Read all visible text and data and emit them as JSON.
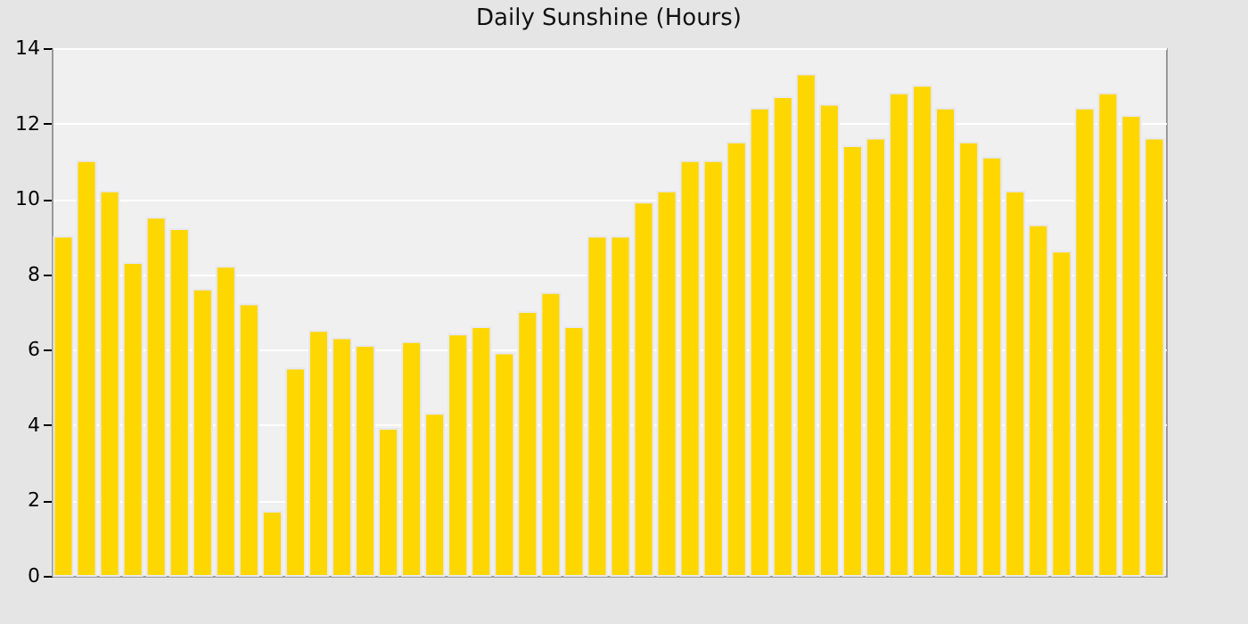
{
  "chart_data": {
    "type": "bar",
    "title": "Daily Sunshine (Hours)",
    "categories": [
      null,
      null,
      null,
      null,
      null,
      null,
      null,
      null,
      null,
      null,
      null,
      null,
      null,
      null,
      null,
      null,
      null,
      null,
      null,
      null,
      null,
      null,
      null,
      null,
      null,
      null,
      null,
      null,
      null,
      null,
      null,
      null,
      null,
      null,
      null,
      null,
      null,
      null,
      null,
      null,
      null,
      null,
      null,
      null,
      null,
      null,
      null,
      null
    ],
    "values": [
      9.0,
      11.0,
      10.2,
      8.3,
      9.5,
      9.2,
      7.6,
      8.2,
      7.2,
      1.7,
      5.5,
      6.5,
      6.3,
      6.1,
      3.9,
      6.2,
      4.3,
      6.4,
      6.6,
      5.9,
      7.0,
      7.5,
      6.6,
      9.0,
      9.0,
      9.9,
      10.2,
      11.0,
      11.0,
      11.5,
      12.4,
      12.7,
      13.3,
      12.5,
      11.4,
      11.6,
      12.8,
      13.0,
      12.4,
      11.5,
      11.1,
      10.2,
      9.3,
      8.6,
      12.4,
      12.8,
      12.2,
      11.6
    ],
    "color": "#ffd700",
    "ylim": [
      0,
      14
    ],
    "yticks": [
      0,
      2,
      4,
      6,
      8,
      10,
      12,
      14
    ],
    "grid": "y",
    "tick_labels": "y"
  }
}
